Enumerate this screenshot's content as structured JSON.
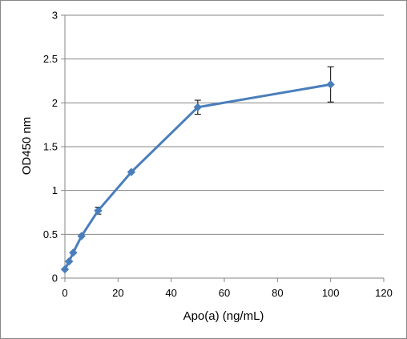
{
  "chart_data": {
    "type": "line",
    "title": "",
    "xlabel": "Apo(a) (ng/mL)",
    "ylabel": "OD450 nm",
    "xlim": [
      0,
      120
    ],
    "ylim": [
      0,
      3
    ],
    "x_ticks": [
      0,
      20,
      40,
      60,
      80,
      100,
      120
    ],
    "x_tick_labels": [
      "0",
      "20",
      "40",
      "60",
      "80",
      "100",
      "120"
    ],
    "y_ticks": [
      0,
      0.5,
      1,
      1.5,
      2,
      2.5,
      3
    ],
    "y_tick_labels": [
      "0",
      "0.5",
      "1",
      "1.5",
      "2",
      "2.5",
      "3"
    ],
    "grid": "horizontal",
    "legend": "none",
    "series": [
      {
        "color": "#4A7EBB",
        "marker": "diamond",
        "x": [
          0,
          1.5625,
          3.125,
          6.25,
          12.5,
          25,
          50,
          100
        ],
        "y": [
          0.1,
          0.19,
          0.29,
          0.48,
          0.77,
          1.21,
          1.95,
          2.21
        ],
        "error": [
          0,
          0,
          0,
          0,
          0.04,
          0,
          0.08,
          0.2
        ]
      }
    ]
  }
}
